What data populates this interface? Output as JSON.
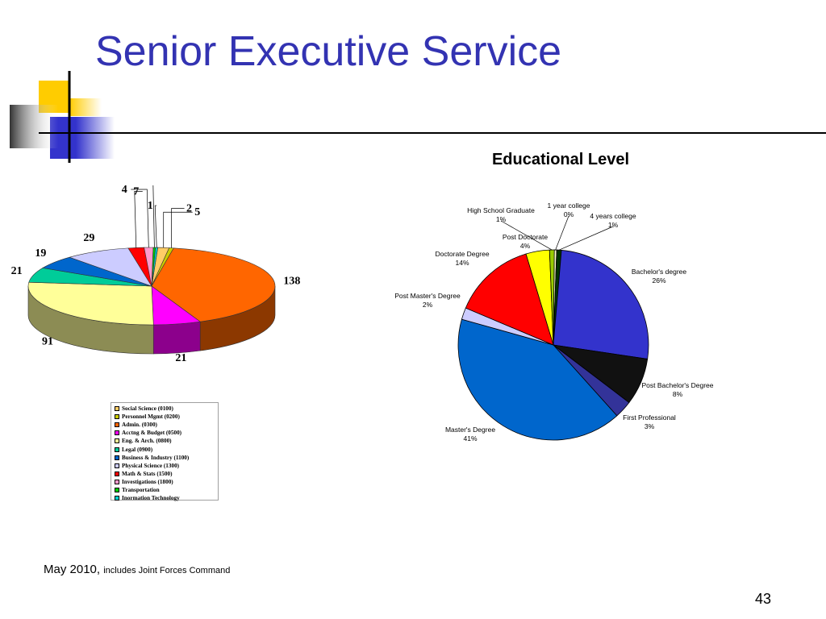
{
  "slide": {
    "title": "Senior Executive Service",
    "footnote_main": "May 2010,",
    "footnote_small": "includes Joint Forces Command",
    "page_number": "43"
  },
  "colors": {
    "title": "#3333b2",
    "deco_yellow": "#ffcc00",
    "deco_blue": "#3333cc",
    "deco_line": "#000000"
  },
  "chart_data": [
    {
      "type": "pie",
      "subtype": "3d",
      "title": "",
      "series": [
        {
          "label": "Social Science (0100)",
          "value": 5,
          "color": "#ffcc66"
        },
        {
          "label": "Personnel Mgmt (0200)",
          "value": 2,
          "color": "#cccc00"
        },
        {
          "label": "Admin. (0300)",
          "value": 138,
          "color": "#ff6600"
        },
        {
          "label": "Acctng & Budget (0500)",
          "value": 21,
          "color": "#ff00ff"
        },
        {
          "label": "Eng. & Arch. (0800)",
          "value": 91,
          "color": "#ffff99"
        },
        {
          "label": "Legal (0900)",
          "value": 21,
          "color": "#00cc99"
        },
        {
          "label": "Business & Industry (1100)",
          "value": 19,
          "color": "#0066cc"
        },
        {
          "label": "Physical Science (1300)",
          "value": 29,
          "color": "#ccccff"
        },
        {
          "label": "Math & Stats  (1500)",
          "value": 7,
          "color": "#ff0000"
        },
        {
          "label": "Investigations (1800)",
          "value": 4,
          "color": "#ff99cc"
        },
        {
          "label": "Transportation",
          "value": 1,
          "color": "#00cc00"
        },
        {
          "label": "Inormation Technology",
          "value": 1,
          "color": "#00cccc"
        }
      ],
      "legend_position": "bottom"
    },
    {
      "type": "pie",
      "title": "Educational Level",
      "series": [
        {
          "label": "1 year college",
          "percent_label": "0%",
          "value": 0.4,
          "color": "#ffffcc"
        },
        {
          "label": "4 years college",
          "percent_label": "1%",
          "value": 0.8,
          "color": "#003300"
        },
        {
          "label": "Bachelor's degree",
          "percent_label": "26%",
          "value": 26,
          "color": "#3333cc"
        },
        {
          "label": "Post Bachelor's Degree",
          "percent_label": "8%",
          "value": 8,
          "color": "#111111"
        },
        {
          "label": "First Professional",
          "percent_label": "3%",
          "value": 3,
          "color": "#333399"
        },
        {
          "label": "Master's Degree",
          "percent_label": "41%",
          "value": 41,
          "color": "#0066cc"
        },
        {
          "label": "Post Master's Degree",
          "percent_label": "2%",
          "value": 2,
          "color": "#ccccff"
        },
        {
          "label": "Doctorate Degree",
          "percent_label": "14%",
          "value": 14,
          "color": "#ff0000"
        },
        {
          "label": "Post Doctorate",
          "percent_label": "4%",
          "value": 4,
          "color": "#ffff00"
        },
        {
          "label": "High School Graduate",
          "percent_label": "1%",
          "value": 0.8,
          "color": "#99cc00"
        }
      ]
    }
  ]
}
